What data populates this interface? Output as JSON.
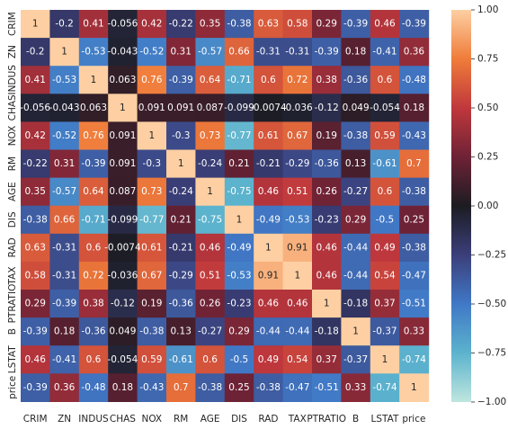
{
  "chart_data": {
    "type": "heatmap",
    "title": "",
    "xlabel": "",
    "ylabel": "",
    "labels": [
      "CRIM",
      "ZN",
      "INDUS",
      "CHAS",
      "NOX",
      "RM",
      "AGE",
      "DIS",
      "RAD",
      "TAX",
      "PTRATIO",
      "B",
      "LSTAT",
      "price"
    ],
    "values": [
      [
        "1",
        "-0.2",
        "0.41",
        "-0.056",
        "0.42",
        "-0.22",
        "0.35",
        "-0.38",
        "0.63",
        "0.58",
        "0.29",
        "-0.39",
        "0.46",
        "-0.39"
      ],
      [
        "-0.2",
        "1",
        "-0.53",
        "-0.043",
        "-0.52",
        "0.31",
        "-0.57",
        "0.66",
        "-0.31",
        "-0.31",
        "-0.39",
        "0.18",
        "-0.41",
        "0.36"
      ],
      [
        "0.41",
        "-0.53",
        "1",
        "0.063",
        "0.76",
        "-0.39",
        "0.64",
        "-0.71",
        "0.6",
        "0.72",
        "0.38",
        "-0.36",
        "0.6",
        "-0.48"
      ],
      [
        "-0.056",
        "-0.043",
        "0.063",
        "1",
        "0.091",
        "0.091",
        "0.087",
        "-0.099",
        "-0.0074",
        "-0.036",
        "-0.12",
        "0.049",
        "-0.054",
        "0.18"
      ],
      [
        "0.42",
        "-0.52",
        "0.76",
        "0.091",
        "1",
        "-0.3",
        "0.73",
        "-0.77",
        "0.61",
        "0.67",
        "0.19",
        "-0.38",
        "0.59",
        "-0.43"
      ],
      [
        "-0.22",
        "0.31",
        "-0.39",
        "0.091",
        "-0.3",
        "1",
        "-0.24",
        "0.21",
        "-0.21",
        "-0.29",
        "-0.36",
        "0.13",
        "-0.61",
        "0.7"
      ],
      [
        "0.35",
        "-0.57",
        "0.64",
        "0.087",
        "0.73",
        "-0.24",
        "1",
        "-0.75",
        "0.46",
        "0.51",
        "0.26",
        "-0.27",
        "0.6",
        "-0.38"
      ],
      [
        "-0.38",
        "0.66",
        "-0.71",
        "-0.099",
        "-0.77",
        "0.21",
        "-0.75",
        "1",
        "-0.49",
        "-0.53",
        "-0.23",
        "0.29",
        "-0.5",
        "0.25"
      ],
      [
        "0.63",
        "-0.31",
        "0.6",
        "-0.0074",
        "0.61",
        "-0.21",
        "0.46",
        "-0.49",
        "1",
        "0.91",
        "0.46",
        "-0.44",
        "0.49",
        "-0.38"
      ],
      [
        "0.58",
        "-0.31",
        "0.72",
        "-0.036",
        "0.67",
        "-0.29",
        "0.51",
        "-0.53",
        "0.91",
        "1",
        "0.46",
        "-0.44",
        "0.54",
        "-0.47"
      ],
      [
        "0.29",
        "-0.39",
        "0.38",
        "-0.12",
        "0.19",
        "-0.36",
        "0.26",
        "-0.23",
        "0.46",
        "0.46",
        "1",
        "-0.18",
        "0.37",
        "-0.51"
      ],
      [
        "-0.39",
        "0.18",
        "-0.36",
        "0.049",
        "-0.38",
        "0.13",
        "-0.27",
        "0.29",
        "-0.44",
        "-0.44",
        "-0.18",
        "1",
        "-0.37",
        "0.33"
      ],
      [
        "0.46",
        "-0.41",
        "0.6",
        "-0.054",
        "0.59",
        "-0.61",
        "0.6",
        "-0.5",
        "0.49",
        "0.54",
        "0.37",
        "-0.37",
        "1",
        "-0.74"
      ],
      [
        "-0.39",
        "0.36",
        "-0.48",
        "0.18",
        "-0.43",
        "0.7",
        "-0.38",
        "0.25",
        "-0.38",
        "-0.47",
        "-0.51",
        "0.33",
        "-0.74",
        "1"
      ]
    ],
    "colorbar": {
      "range": [
        -1,
        1
      ],
      "ticks": [
        "1.00",
        "0.75",
        "0.50",
        "0.25",
        "0.00",
        "−0.25",
        "−0.50",
        "−0.75",
        "−1.00"
      ],
      "colormap": "icefire"
    },
    "grid": false,
    "legend": "colorbar-right"
  }
}
